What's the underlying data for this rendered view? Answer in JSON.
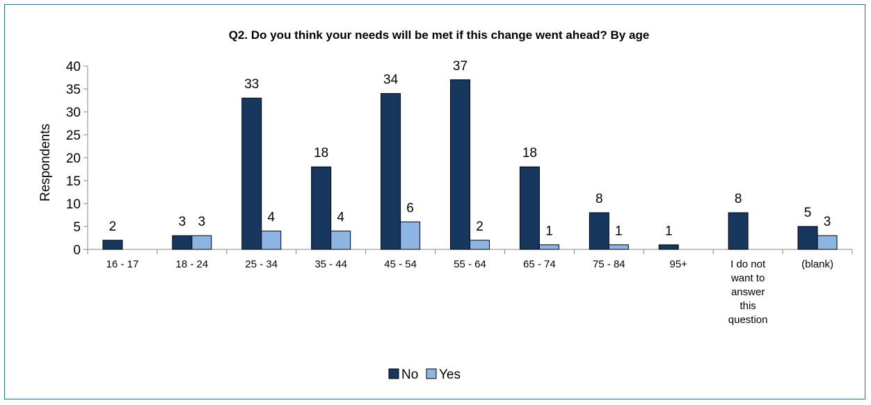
{
  "chart_data": {
    "type": "bar",
    "title": "Q2. Do you think your needs will be met if this change went ahead? By age",
    "xlabel": "",
    "ylabel": "Respondents",
    "ylim": [
      0,
      40
    ],
    "yticks": [
      0,
      5,
      10,
      15,
      20,
      25,
      30,
      35,
      40
    ],
    "categories": [
      "16 - 17",
      "18 - 24",
      "25 - 34",
      "35 - 44",
      "45 - 54",
      "55 - 64",
      "65 - 74",
      "75 - 84",
      "95+",
      "I do not want to answer this question",
      "(blank)"
    ],
    "category_lines": [
      [
        "16 - 17"
      ],
      [
        "18 - 24"
      ],
      [
        "25 - 34"
      ],
      [
        "35 - 44"
      ],
      [
        "45 - 54"
      ],
      [
        "55 - 64"
      ],
      [
        "65 - 74"
      ],
      [
        "75 - 84"
      ],
      [
        "95+"
      ],
      [
        "I do not",
        "want to",
        "answer",
        "this",
        "question"
      ],
      [
        "(blank)"
      ]
    ],
    "series": [
      {
        "name": "No",
        "values": [
          2,
          3,
          33,
          18,
          34,
          37,
          18,
          8,
          1,
          8,
          5
        ],
        "color": "#17375e"
      },
      {
        "name": "Yes",
        "values": [
          null,
          3,
          4,
          4,
          6,
          2,
          1,
          1,
          null,
          null,
          3
        ],
        "color": "#8eb4e3"
      }
    ],
    "grid": false,
    "legend_position": "bottom",
    "data_labels": true
  }
}
